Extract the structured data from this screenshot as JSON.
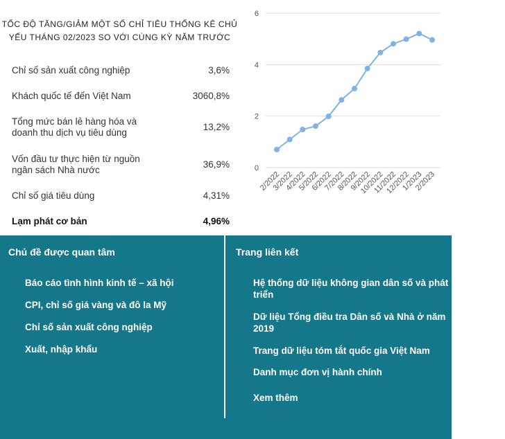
{
  "stats": {
    "title_line1": "Tốc độ tăng/giảm một số chỉ tiêu thống kê chủ",
    "title_line2": "yếu tháng 02/2023 so với cùng kỳ năm trước",
    "rows": [
      {
        "label": "Chỉ số sản xuất công nghiệp",
        "value": "3,6%"
      },
      {
        "label": "Khách quốc tế đến Việt Nam",
        "value": "3060,8%"
      },
      {
        "label": "Tổng mức bán lẻ hàng hóa và doanh thu dịch vụ tiêu dùng",
        "value": "13,2%"
      },
      {
        "label": "Vốn đầu tư thực hiện từ nguồn ngân sách Nhà nước",
        "value": "36,9%"
      },
      {
        "label": "Chỉ số giá tiêu dùng",
        "value": "4,31%"
      },
      {
        "label": "Lạm phát cơ bản",
        "value": "4,96%"
      }
    ]
  },
  "chart_data": {
    "type": "line",
    "title": "",
    "xlabel": "",
    "ylabel": "",
    "categories": [
      "2/2022",
      "3/2022",
      "4/2022",
      "5/2022",
      "6/2022",
      "7/2022",
      "8/2022",
      "9/2022",
      "10/2022",
      "11/2022",
      "12/2022",
      "1/2023",
      "2/2023"
    ],
    "series": [
      {
        "values": [
          0.7,
          1.09,
          1.48,
          1.61,
          1.99,
          2.63,
          3.07,
          3.85,
          4.47,
          4.81,
          4.99,
          5.21,
          4.96
        ]
      }
    ],
    "yticks": [
      0,
      2,
      4,
      6
    ],
    "ylim": [
      0,
      6
    ],
    "grid": true,
    "line_color": "#7fb2e5",
    "gridline_color": "#dddddd"
  },
  "footer": {
    "bg_color": "#15778a",
    "left": {
      "title": "Chủ đề được quan tâm",
      "links": [
        "Báo cáo tình hình kinh tế – xã hội",
        "CPI, chỉ số giá vàng và đô la Mỹ",
        "Chỉ số sản xuất công nghiệp",
        "Xuất, nhập khẩu"
      ]
    },
    "right": {
      "title": "Trang liên kết",
      "links": [
        "Hệ thống dữ liệu không gian dân số và phát triển",
        "Dữ liệu Tổng điều tra Dân số và Nhà ở năm 2019",
        "Trang dữ liệu tóm tắt quốc gia Việt Nam",
        "Danh mục đơn vị hành chính",
        "Xem thêm"
      ]
    }
  }
}
